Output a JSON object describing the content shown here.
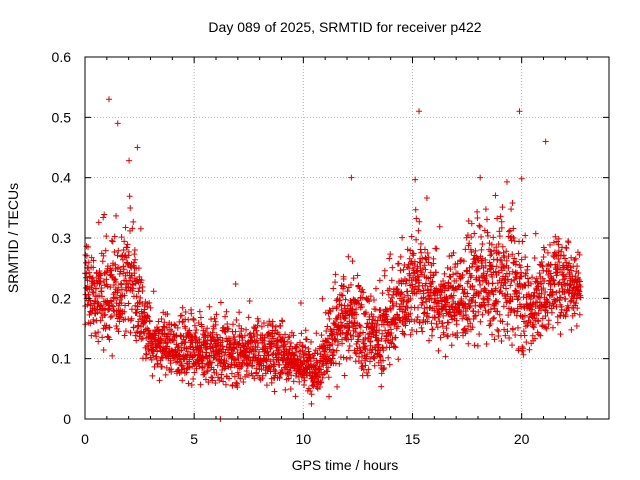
{
  "chart_data": {
    "type": "scatter",
    "title": "Day 089 of 2025, SRMTID for receiver p422",
    "xlabel": "GPS time / hours",
    "ylabel": "SRMTID / TECUs",
    "xlim": [
      0,
      24
    ],
    "ylim": [
      0,
      0.6
    ],
    "grid": true,
    "marker": "+",
    "x_ticks": [
      0,
      5,
      10,
      15,
      20
    ],
    "x_tick_labels": [
      "0",
      "5",
      "10",
      "15",
      "20"
    ],
    "y_ticks": [
      0,
      0.1,
      0.2,
      0.3,
      0.4,
      0.5,
      0.6
    ],
    "y_tick_labels": [
      "0",
      "0.1",
      "0.2",
      "0.3",
      "0.4",
      "0.5",
      "0.6"
    ],
    "series": [
      {
        "name": "SRMTID",
        "color": "#e00000",
        "point_count_estimate": 3000,
        "trend": [
          {
            "x": 0.0,
            "mean": 0.21,
            "spread": 0.06
          },
          {
            "x": 1.0,
            "mean": 0.2,
            "spread": 0.09
          },
          {
            "x": 2.0,
            "mean": 0.24,
            "spread": 0.1
          },
          {
            "x": 3.0,
            "mean": 0.13,
            "spread": 0.05
          },
          {
            "x": 5.0,
            "mean": 0.11,
            "spread": 0.05
          },
          {
            "x": 7.0,
            "mean": 0.11,
            "spread": 0.05
          },
          {
            "x": 9.0,
            "mean": 0.11,
            "spread": 0.05
          },
          {
            "x": 10.5,
            "mean": 0.08,
            "spread": 0.04
          },
          {
            "x": 12.0,
            "mean": 0.17,
            "spread": 0.08
          },
          {
            "x": 13.5,
            "mean": 0.13,
            "spread": 0.06
          },
          {
            "x": 15.0,
            "mean": 0.23,
            "spread": 0.09
          },
          {
            "x": 16.5,
            "mean": 0.19,
            "spread": 0.07
          },
          {
            "x": 18.0,
            "mean": 0.22,
            "spread": 0.09
          },
          {
            "x": 19.5,
            "mean": 0.23,
            "spread": 0.1
          },
          {
            "x": 20.5,
            "mean": 0.18,
            "spread": 0.07
          },
          {
            "x": 21.5,
            "mean": 0.23,
            "spread": 0.07
          },
          {
            "x": 22.7,
            "mean": 0.22,
            "spread": 0.06
          }
        ],
        "x_range": [
          0,
          22.7
        ],
        "notable_points": [
          {
            "x": 1.1,
            "y": 0.53
          },
          {
            "x": 1.5,
            "y": 0.49
          },
          {
            "x": 2.4,
            "y": 0.45
          },
          {
            "x": 12.2,
            "y": 0.4
          },
          {
            "x": 15.3,
            "y": 0.51
          },
          {
            "x": 18.1,
            "y": 0.4
          },
          {
            "x": 19.9,
            "y": 0.51
          },
          {
            "x": 21.1,
            "y": 0.46
          },
          {
            "x": 6.2,
            "y": 0.0
          }
        ]
      }
    ]
  }
}
